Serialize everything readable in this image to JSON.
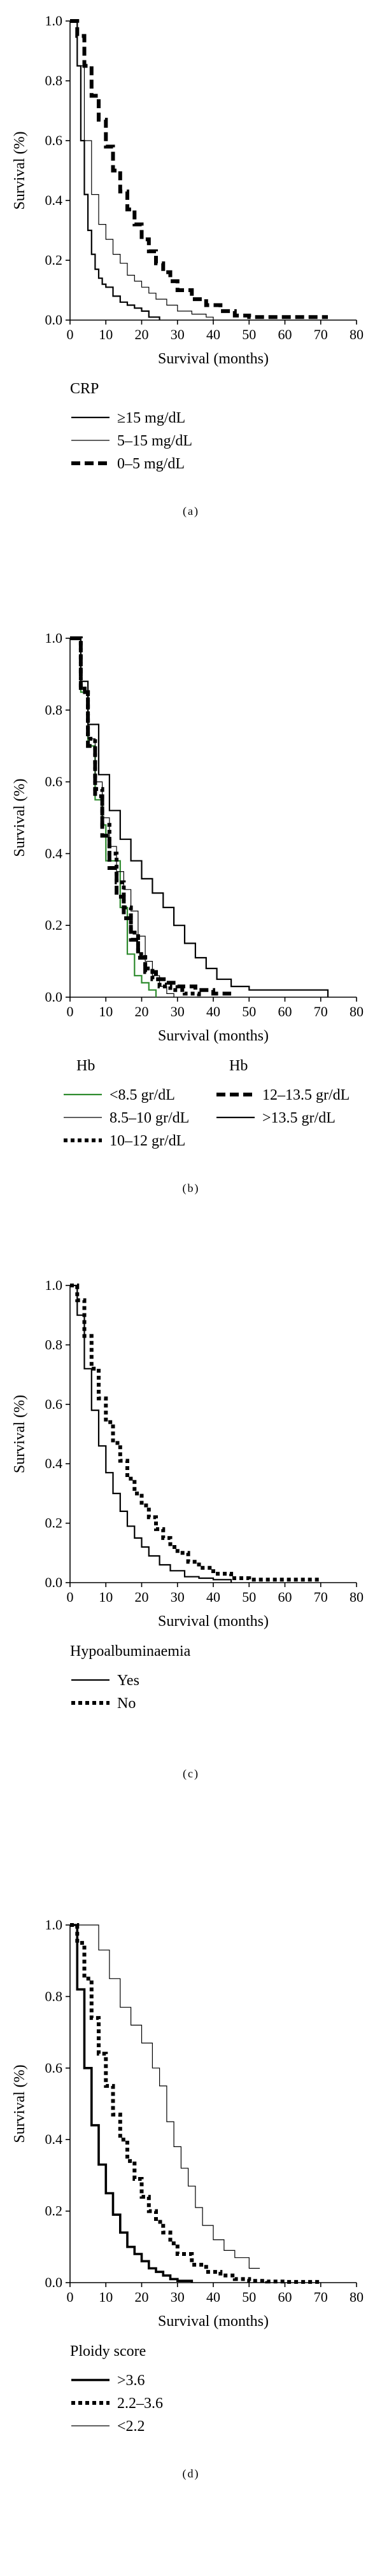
{
  "chart_data": [
    {
      "type": "line",
      "panel_label": "(a)",
      "xlabel": "Survival (months)",
      "ylabel": "Survival (%)",
      "xlim": [
        0,
        80
      ],
      "ylim": [
        0,
        1.0
      ],
      "xticks": [
        "0",
        "10",
        "20",
        "30",
        "40",
        "50",
        "60",
        "70",
        "80"
      ],
      "yticks": [
        "0.0",
        "0.2",
        "0.4",
        "0.6",
        "0.8",
        "1.0"
      ],
      "legend_title": "CRP",
      "series": [
        {
          "name": "≥15 mg/dL",
          "style": "thin-solid",
          "color": "#000000",
          "x": [
            0,
            2,
            3,
            4,
            5,
            6,
            7,
            8,
            9,
            10,
            12,
            14,
            16,
            18,
            20,
            22,
            25
          ],
          "y": [
            1.0,
            0.85,
            0.6,
            0.42,
            0.3,
            0.22,
            0.17,
            0.14,
            0.12,
            0.11,
            0.08,
            0.06,
            0.05,
            0.04,
            0.03,
            0.01,
            0.0
          ]
        },
        {
          "name": "5–15 mg/dL",
          "style": "hairline",
          "color": "#000000",
          "x": [
            0,
            2,
            4,
            6,
            8,
            10,
            12,
            14,
            16,
            18,
            20,
            22,
            24,
            27,
            30,
            34,
            38,
            40
          ],
          "y": [
            1.0,
            0.85,
            0.6,
            0.42,
            0.32,
            0.27,
            0.22,
            0.19,
            0.15,
            0.13,
            0.11,
            0.09,
            0.07,
            0.05,
            0.03,
            0.02,
            0.01,
            0.0
          ]
        },
        {
          "name": "0–5 mg/dL",
          "style": "thick-dash",
          "color": "#000000",
          "x": [
            0,
            2,
            4,
            6,
            8,
            10,
            12,
            14,
            16,
            18,
            20,
            22,
            24,
            26,
            28,
            30,
            34,
            38,
            42,
            46,
            50,
            55,
            60,
            65,
            70,
            72
          ],
          "y": [
            1.0,
            0.95,
            0.85,
            0.75,
            0.67,
            0.58,
            0.5,
            0.43,
            0.37,
            0.32,
            0.27,
            0.23,
            0.19,
            0.16,
            0.13,
            0.1,
            0.07,
            0.05,
            0.03,
            0.015,
            0.01,
            0.01,
            0.01,
            0.01,
            0.01,
            0.01
          ]
        }
      ]
    },
    {
      "type": "line",
      "panel_label": "(b)",
      "xlabel": "Survival (months)",
      "ylabel": "Survival (%)",
      "xlim": [
        0,
        80
      ],
      "ylim": [
        0,
        1.0
      ],
      "xticks": [
        "0",
        "10",
        "20",
        "30",
        "40",
        "50",
        "60",
        "70",
        "80"
      ],
      "yticks": [
        "0.0",
        "0.2",
        "0.4",
        "0.6",
        "0.8",
        "1.0"
      ],
      "legend_title_left": "Hb",
      "legend_title_right": "Hb",
      "series": [
        {
          "name": "<8.5 gr/dL",
          "style": "thin-solid",
          "color": "#2e8b2e",
          "x": [
            0,
            3,
            5,
            7,
            9,
            10,
            12,
            14,
            16,
            18,
            20,
            22,
            24
          ],
          "y": [
            1.0,
            0.85,
            0.7,
            0.55,
            0.48,
            0.38,
            0.38,
            0.25,
            0.12,
            0.06,
            0.04,
            0.02,
            0.0
          ]
        },
        {
          "name": "8.5–10 gr/dL",
          "style": "hairline",
          "color": "#000000",
          "x": [
            0,
            3,
            5,
            7,
            9,
            11,
            13,
            15,
            17,
            19,
            21,
            23,
            25,
            27,
            29
          ],
          "y": [
            1.0,
            0.88,
            0.72,
            0.6,
            0.5,
            0.42,
            0.35,
            0.3,
            0.24,
            0.17,
            0.1,
            0.06,
            0.03,
            0.01,
            0.0
          ]
        },
        {
          "name": "10–12 gr/dL",
          "style": "thick-dot",
          "color": "#000000",
          "x": [
            0,
            3,
            5,
            7,
            9,
            11,
            13,
            15,
            17,
            19,
            21,
            23,
            25,
            28,
            32,
            36
          ],
          "y": [
            1.0,
            0.86,
            0.72,
            0.58,
            0.48,
            0.4,
            0.32,
            0.25,
            0.18,
            0.12,
            0.08,
            0.05,
            0.03,
            0.02,
            0.01,
            0.0
          ]
        },
        {
          "name": "12–13.5 gr/dL",
          "style": "thick-dash",
          "color": "#000000",
          "x": [
            0,
            3,
            5,
            7,
            9,
            11,
            13,
            15,
            17,
            19,
            21,
            24,
            27,
            30,
            35,
            40,
            45
          ],
          "y": [
            1.0,
            0.85,
            0.7,
            0.56,
            0.45,
            0.36,
            0.28,
            0.22,
            0.16,
            0.11,
            0.07,
            0.05,
            0.04,
            0.03,
            0.02,
            0.01,
            0.01
          ]
        },
        {
          "name": ">13.5 gr/dL",
          "style": "thin-solid",
          "color": "#000000",
          "x": [
            0,
            3,
            5,
            8,
            11,
            14,
            17,
            20,
            23,
            26,
            29,
            32,
            35,
            38,
            41,
            45,
            50,
            55,
            62,
            70,
            72
          ],
          "y": [
            1.0,
            0.88,
            0.76,
            0.62,
            0.52,
            0.44,
            0.38,
            0.33,
            0.29,
            0.25,
            0.2,
            0.15,
            0.11,
            0.08,
            0.05,
            0.03,
            0.02,
            0.02,
            0.02,
            0.02,
            0.0
          ]
        }
      ]
    },
    {
      "type": "line",
      "panel_label": "(c)",
      "xlabel": "Survival (months)",
      "ylabel": "Survival (%)",
      "xlim": [
        0,
        80
      ],
      "ylim": [
        0,
        1.0
      ],
      "xticks": [
        "0",
        "10",
        "20",
        "30",
        "40",
        "50",
        "60",
        "70",
        "80"
      ],
      "yticks": [
        "0.0",
        "0.2",
        "0.4",
        "0.6",
        "0.8",
        "1.0"
      ],
      "legend_title": "Hypoalbuminaemia",
      "series": [
        {
          "name": "Yes",
          "style": "thin-solid",
          "color": "#000000",
          "x": [
            0,
            2,
            4,
            6,
            8,
            10,
            12,
            14,
            16,
            18,
            20,
            22,
            25,
            28,
            32,
            36,
            40,
            45
          ],
          "y": [
            1.0,
            0.9,
            0.72,
            0.58,
            0.46,
            0.37,
            0.3,
            0.24,
            0.19,
            0.15,
            0.12,
            0.09,
            0.06,
            0.04,
            0.02,
            0.015,
            0.01,
            0.0
          ]
        },
        {
          "name": "No",
          "style": "thick-dot",
          "color": "#000000",
          "x": [
            0,
            2,
            4,
            6,
            8,
            10,
            12,
            14,
            16,
            18,
            20,
            22,
            24,
            26,
            28,
            30,
            33,
            36,
            40,
            45,
            50,
            55,
            60,
            65,
            70
          ],
          "y": [
            1.0,
            0.95,
            0.83,
            0.72,
            0.62,
            0.54,
            0.47,
            0.41,
            0.35,
            0.3,
            0.26,
            0.22,
            0.18,
            0.15,
            0.12,
            0.1,
            0.07,
            0.05,
            0.03,
            0.015,
            0.01,
            0.01,
            0.01,
            0.01,
            0.01
          ]
        }
      ]
    },
    {
      "type": "line",
      "panel_label": "(d)",
      "xlabel": "Survival (months)",
      "ylabel": "Survival (%)",
      "xlim": [
        0,
        80
      ],
      "ylim": [
        0,
        1.0
      ],
      "xticks": [
        "0",
        "10",
        "20",
        "30",
        "40",
        "50",
        "60",
        "70",
        "80"
      ],
      "yticks": [
        "0.0",
        "0.2",
        "0.4",
        "0.6",
        "0.8",
        "1.0"
      ],
      "legend_title": "Ploidy score",
      "series": [
        {
          "name": ">3.6",
          "style": "thick-solid",
          "color": "#000000",
          "x": [
            0,
            2,
            4,
            6,
            8,
            10,
            12,
            14,
            16,
            18,
            20,
            22,
            24,
            26,
            28,
            30,
            34
          ],
          "y": [
            1.0,
            0.82,
            0.6,
            0.44,
            0.33,
            0.25,
            0.19,
            0.14,
            0.1,
            0.08,
            0.06,
            0.04,
            0.03,
            0.02,
            0.01,
            0.005,
            0.0
          ]
        },
        {
          "name": "2.2–3.6",
          "style": "thick-dot",
          "color": "#000000",
          "x": [
            0,
            2,
            4,
            6,
            8,
            10,
            12,
            14,
            16,
            18,
            20,
            22,
            24,
            26,
            28,
            30,
            34,
            38,
            42,
            46,
            50,
            55,
            60,
            65,
            70
          ],
          "y": [
            1.0,
            0.95,
            0.85,
            0.74,
            0.64,
            0.55,
            0.47,
            0.4,
            0.34,
            0.29,
            0.24,
            0.2,
            0.17,
            0.14,
            0.11,
            0.08,
            0.05,
            0.03,
            0.02,
            0.01,
            0.005,
            0.003,
            0.002,
            0.002,
            0.002
          ]
        },
        {
          "name": "<2.2",
          "style": "hairline",
          "color": "#000000",
          "x": [
            0,
            5,
            8,
            11,
            14,
            17,
            20,
            23,
            25,
            27,
            29,
            31,
            33,
            35,
            37,
            40,
            43,
            46,
            50,
            53
          ],
          "y": [
            1.0,
            1.0,
            0.93,
            0.85,
            0.77,
            0.72,
            0.67,
            0.6,
            0.55,
            0.45,
            0.38,
            0.32,
            0.27,
            0.21,
            0.16,
            0.12,
            0.09,
            0.07,
            0.04,
            0.04
          ]
        }
      ]
    }
  ]
}
